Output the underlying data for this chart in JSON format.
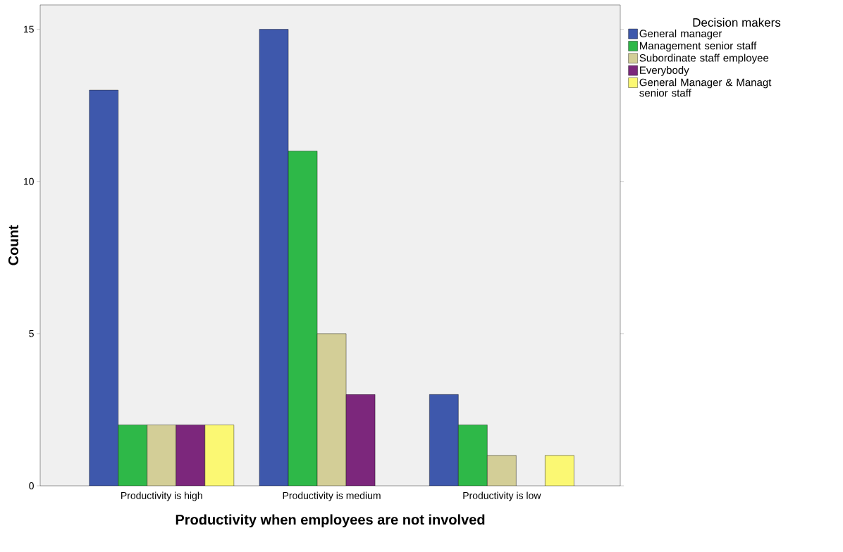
{
  "chart_data": {
    "type": "bar",
    "xlabel": "Productivity when employees are not involved",
    "ylabel": "Count",
    "legend_title": "Decision makers",
    "categories": [
      "Productivity is high",
      "Productivity is medium",
      "Productivity is low"
    ],
    "series": [
      {
        "name": "General manager",
        "color": "#3e58ac",
        "values": [
          13,
          15,
          3
        ]
      },
      {
        "name": "Management senior staff",
        "color": "#2eb848",
        "values": [
          2,
          11,
          2
        ]
      },
      {
        "name": "Subordinate staff employee",
        "color": "#d3ce97",
        "values": [
          2,
          5,
          1
        ]
      },
      {
        "name": "Everybody",
        "color": "#7c277c",
        "values": [
          2,
          3,
          null
        ]
      },
      {
        "name": "General Manager & Managt senior staff",
        "color": "#fbf873",
        "values": [
          2,
          null,
          1
        ]
      }
    ],
    "ylim": [
      0,
      15.8
    ],
    "yticks": [
      0,
      5,
      10,
      15
    ],
    "grid": false,
    "legend": "top right"
  }
}
